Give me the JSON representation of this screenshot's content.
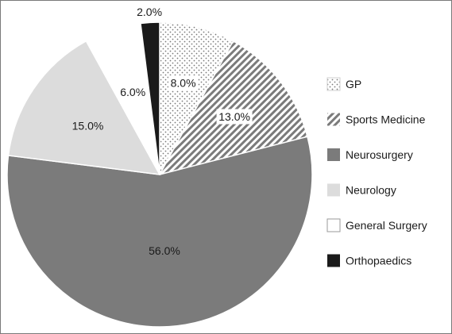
{
  "chart_data": {
    "type": "pie",
    "categories": [
      "GP",
      "Sports Medicine",
      "Neurosurgery",
      "Neurology",
      "General Surgery",
      "Orthopaedics"
    ],
    "values": [
      8.0,
      13.0,
      56.0,
      15.0,
      6.0,
      2.0
    ],
    "value_labels": [
      "8.0%",
      "13.0%",
      "56.0%",
      "15.0%",
      "6.0%",
      "2.0%"
    ],
    "fills": [
      "dots",
      "diagonal-stripes",
      "#7b7b7b",
      "#dcdcdc",
      "#ffffff",
      "#1a1a1a"
    ],
    "start_angle": "12 o'clock",
    "direction": "clockwise",
    "legend": {
      "position": "right",
      "entries": [
        "GP",
        "Sports Medicine",
        "Neurosurgery",
        "Neurology",
        "General Surgery",
        "Orthopaedics"
      ]
    },
    "title": "",
    "xlabel": "",
    "ylabel": ""
  }
}
